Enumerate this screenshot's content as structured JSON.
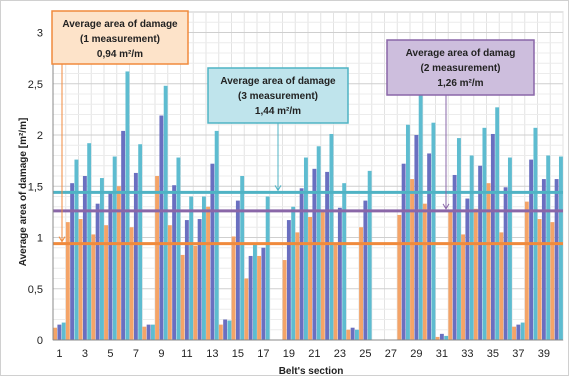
{
  "chart_data": {
    "type": "bar",
    "xlabel": "Belt's section",
    "ylabel": "Average area of damage [m²/m]",
    "ylim": [
      0,
      3.2
    ],
    "yticks": [
      "0",
      "0,5",
      "1",
      "1,5",
      "2",
      "2,5",
      "3"
    ],
    "ytick_values": [
      0,
      0.5,
      1,
      1.5,
      2,
      2.5,
      3
    ],
    "xticks": [
      "1",
      "3",
      "5",
      "7",
      "9",
      "11",
      "13",
      "15",
      "17",
      "19",
      "21",
      "23",
      "25",
      "27",
      "29",
      "31",
      "33",
      "35",
      "37",
      "39"
    ],
    "grid": true,
    "categories": [
      1,
      2,
      3,
      4,
      5,
      6,
      7,
      8,
      9,
      10,
      11,
      12,
      13,
      14,
      15,
      16,
      17,
      18,
      19,
      20,
      21,
      22,
      23,
      24,
      25,
      26,
      27,
      28,
      29,
      30,
      31,
      32,
      33,
      34,
      35,
      36,
      37,
      38,
      39,
      40
    ],
    "series": [
      {
        "color": "#f4a468",
        "values": [
          0.12,
          1.15,
          1.18,
          1.03,
          1.12,
          1.5,
          1.1,
          0.13,
          1.6,
          1.12,
          0.83,
          0.92,
          1.3,
          0.15,
          1.01,
          0.6,
          0.82,
          0.0,
          0.78,
          1.05,
          1.2,
          1.25,
          0.95,
          0.1,
          1.1,
          0.0,
          0.0,
          1.22,
          1.57,
          1.33,
          0.03,
          1.27,
          1.03,
          1.28,
          1.53,
          1.05,
          0.13,
          1.35,
          1.18,
          1.15
        ]
      },
      {
        "color": "#6a6fc0",
        "values": [
          0.15,
          1.53,
          1.6,
          1.33,
          1.45,
          2.04,
          1.63,
          0.15,
          2.19,
          1.51,
          1.17,
          1.18,
          1.72,
          0.2,
          1.36,
          0.82,
          0.9,
          0.0,
          1.17,
          1.48,
          1.67,
          1.64,
          1.29,
          0.12,
          1.36,
          0.0,
          0.0,
          1.72,
          2.0,
          1.82,
          0.06,
          1.61,
          1.38,
          1.7,
          2.01,
          1.49,
          0.15,
          1.76,
          1.57,
          1.57
        ]
      },
      {
        "color": "#5ebcd0",
        "values": [
          0.17,
          1.76,
          1.92,
          1.58,
          1.79,
          2.62,
          1.91,
          0.15,
          2.48,
          1.78,
          1.4,
          1.4,
          2.04,
          0.19,
          1.6,
          0.95,
          1.4,
          0.0,
          1.3,
          1.78,
          1.89,
          2.01,
          1.53,
          0.1,
          1.65,
          0.0,
          0.0,
          2.1,
          2.41,
          2.12,
          0.04,
          1.97,
          1.8,
          2.07,
          2.27,
          1.78,
          0.17,
          2.07,
          1.8,
          1.79
        ]
      }
    ],
    "reference_lines": [
      {
        "value": 0.94,
        "color": "#f08a3c"
      },
      {
        "value": 1.26,
        "color": "#8a67a8"
      },
      {
        "value": 1.44,
        "color": "#4fb3c4"
      }
    ],
    "annotations": [
      {
        "lines": [
          "Average area of damage",
          "(1 measurement)",
          "0,94 m²/m"
        ],
        "fill": "#fde3c9",
        "stroke": "#f08a3c",
        "points_to": 0.94
      },
      {
        "lines": [
          "Average area of damage",
          "(3 measurement)",
          "1,44 m²/m"
        ],
        "fill": "#bfe4ec",
        "stroke": "#4fb3c4",
        "points_to": 1.44
      },
      {
        "lines": [
          "Average area of damag",
          "(2 measurement)",
          "1,26 m²/m"
        ],
        "fill": "#cdbedd",
        "stroke": "#8a67a8",
        "points_to": 1.26
      }
    ]
  }
}
